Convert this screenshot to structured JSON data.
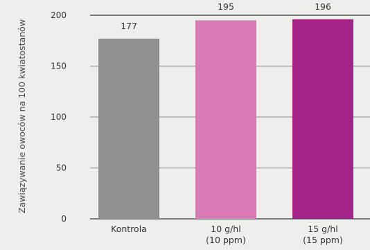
{
  "chart_data": {
    "type": "bar",
    "ylabel": "Zawiązywanie owoców na 100 kwiatostanów",
    "ylim": [
      0,
      200
    ],
    "yticks": [
      "0",
      "50",
      "100",
      "150",
      "200"
    ],
    "grid": true,
    "categories": [
      [
        "Kontrola"
      ],
      [
        "10 g/hl",
        "(10 ppm)"
      ],
      [
        "15 g/hl",
        "(15 ppm)"
      ]
    ],
    "values": [
      177,
      195,
      196
    ],
    "value_labels": [
      "177",
      "195",
      "196"
    ],
    "colors": [
      "#8f9092",
      "#d97cb4",
      "#a32389"
    ]
  }
}
